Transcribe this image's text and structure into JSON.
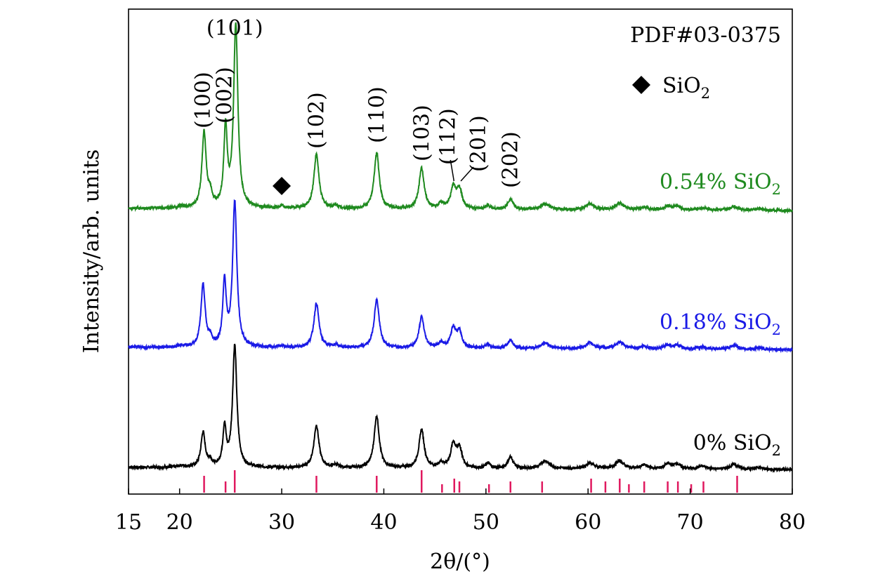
{
  "chart_data": {
    "type": "line",
    "xlabel": "2θ/(°)",
    "ylabel": "Intensity/arb. units",
    "xlim": [
      15,
      80
    ],
    "x_ticks": [
      15,
      20,
      30,
      40,
      50,
      60,
      70,
      80
    ],
    "y_ticks": [],
    "grid": false,
    "annotations": {
      "reference": "PDF#03-0375",
      "marker_label": "SiO",
      "marker_sub": "2",
      "marker_position_2theta": 30.0
    },
    "hkl_labels": [
      {
        "text": "(100)",
        "x": 22.3
      },
      {
        "text": "(002)",
        "x": 24.4
      },
      {
        "text": "(101)",
        "x": 25.4
      },
      {
        "text": "(102)",
        "x": 33.4
      },
      {
        "text": "(110)",
        "x": 39.3
      },
      {
        "text": "(103)",
        "x": 43.7
      },
      {
        "text": "(112)",
        "x": 46.8
      },
      {
        "text": "(201)",
        "x": 47.4
      },
      {
        "text": "(202)",
        "x": 52.4
      }
    ],
    "reference_peaks": {
      "name": "PDF#03-0375",
      "color": "#e0195f",
      "x": [
        22.4,
        24.5,
        25.4,
        33.4,
        39.3,
        43.7,
        45.7,
        46.9,
        47.4,
        50.3,
        52.4,
        55.5,
        60.3,
        61.7,
        63.1,
        64.0,
        65.5,
        67.8,
        68.8,
        70.1,
        71.3,
        74.6
      ],
      "relative_intensity": [
        30,
        20,
        40,
        30,
        30,
        40,
        15,
        25,
        20,
        15,
        20,
        20,
        25,
        20,
        25,
        15,
        20,
        20,
        20,
        15,
        20,
        30
      ]
    },
    "series": [
      {
        "name": "0% SiO",
        "sub": "2",
        "color": "#000000",
        "baseline": 0,
        "tilt": -1.2,
        "peaks": [
          [
            20.2,
            0.8,
            0.4
          ],
          [
            22.3,
            18,
            0.25
          ],
          [
            23.0,
            3,
            0.2
          ],
          [
            24.4,
            20,
            0.2
          ],
          [
            25.4,
            63,
            0.25
          ],
          [
            33.4,
            22,
            0.3
          ],
          [
            35.3,
            1.5,
            0.3
          ],
          [
            39.3,
            27,
            0.3
          ],
          [
            43.7,
            20,
            0.3
          ],
          [
            45.6,
            2.5,
            0.3
          ],
          [
            46.8,
            12,
            0.3
          ],
          [
            47.4,
            10,
            0.3
          ],
          [
            50.2,
            2.5,
            0.3
          ],
          [
            52.4,
            6,
            0.3
          ],
          [
            55.8,
            4,
            0.5
          ],
          [
            60.2,
            3,
            0.5
          ],
          [
            63.1,
            4,
            0.5
          ],
          [
            65.5,
            2,
            0.4
          ],
          [
            67.8,
            2.5,
            0.4
          ],
          [
            68.7,
            2.5,
            0.4
          ],
          [
            71.2,
            1.5,
            0.5
          ],
          [
            74.3,
            2.5,
            0.5
          ],
          [
            76.8,
            1,
            0.5
          ]
        ]
      },
      {
        "name": "0.18% SiO",
        "sub": "2",
        "color": "#1a1ae6",
        "baseline": 0,
        "tilt": -1.2,
        "peaks": [
          [
            20.2,
            0.8,
            0.4
          ],
          [
            22.3,
            32,
            0.25
          ],
          [
            23.0,
            4,
            0.2
          ],
          [
            24.4,
            33,
            0.2
          ],
          [
            25.4,
            75,
            0.25
          ],
          [
            30.0,
            0.8,
            0.3
          ],
          [
            33.4,
            23,
            0.3
          ],
          [
            35.3,
            1.5,
            0.3
          ],
          [
            39.3,
            25,
            0.3
          ],
          [
            43.7,
            16,
            0.3
          ],
          [
            45.6,
            2.5,
            0.3
          ],
          [
            46.8,
            10,
            0.3
          ],
          [
            47.4,
            8,
            0.3
          ],
          [
            50.2,
            2,
            0.3
          ],
          [
            52.4,
            4.5,
            0.3
          ],
          [
            55.8,
            3,
            0.5
          ],
          [
            60.2,
            3,
            0.5
          ],
          [
            63.1,
            3.5,
            0.5
          ],
          [
            65.5,
            1.5,
            0.4
          ],
          [
            67.8,
            2,
            0.4
          ],
          [
            68.7,
            2,
            0.4
          ],
          [
            71.2,
            1.2,
            0.5
          ],
          [
            74.3,
            2,
            0.5
          ],
          [
            76.8,
            0.8,
            0.5
          ]
        ]
      },
      {
        "name": "0.54% SiO",
        "sub": "2",
        "color": "#1f8a1f",
        "baseline": 0,
        "tilt": -1.2,
        "peaks": [
          [
            20.2,
            0.8,
            0.4
          ],
          [
            22.4,
            39,
            0.25
          ],
          [
            23.0,
            6,
            0.2
          ],
          [
            24.5,
            40,
            0.2
          ],
          [
            25.5,
            95,
            0.25
          ],
          [
            30.0,
            1.5,
            0.3
          ],
          [
            33.4,
            28,
            0.3
          ],
          [
            35.3,
            1.5,
            0.3
          ],
          [
            39.3,
            29,
            0.3
          ],
          [
            43.7,
            21,
            0.3
          ],
          [
            45.6,
            2.5,
            0.3
          ],
          [
            46.8,
            11,
            0.3
          ],
          [
            47.4,
            10,
            0.3
          ],
          [
            50.2,
            2,
            0.3
          ],
          [
            52.4,
            5.5,
            0.3
          ],
          [
            55.8,
            3,
            0.5
          ],
          [
            60.2,
            3,
            0.5
          ],
          [
            63.1,
            3.5,
            0.5
          ],
          [
            65.5,
            1.5,
            0.4
          ],
          [
            67.8,
            2,
            0.4
          ],
          [
            68.7,
            2,
            0.4
          ],
          [
            71.2,
            1.2,
            0.5
          ],
          [
            74.3,
            2,
            0.5
          ],
          [
            76.8,
            0.8,
            0.5
          ]
        ]
      }
    ]
  }
}
